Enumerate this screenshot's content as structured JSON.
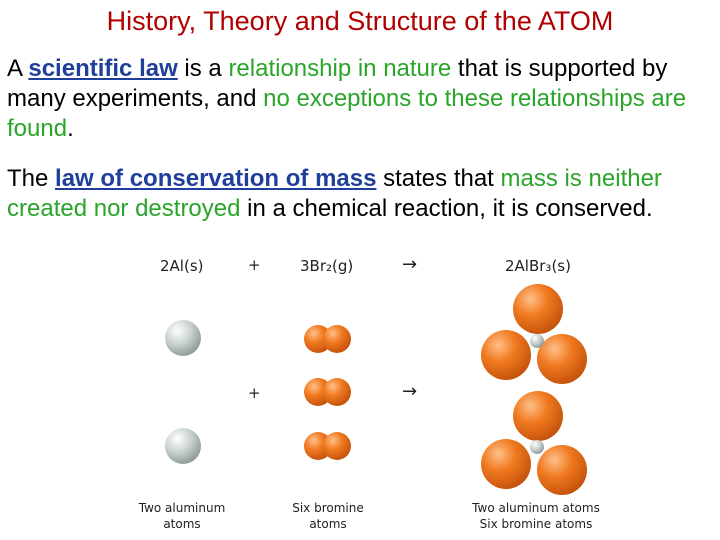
{
  "title": "History, Theory and Structure of the ATOM",
  "para1": {
    "t1": "A ",
    "law": "scientific law",
    "t2": " is a ",
    "g1": "relationship in nature",
    "t3": " that is supported by many experiments, and ",
    "g2": "no exceptions to these relationships are found",
    "t4": "."
  },
  "para2": {
    "t1": "The ",
    "law": "law of conservation of mass",
    "t2": " states that ",
    "g1": "mass is neither created nor destroyed",
    "t3": " in a chemical reaction, it is conserved."
  },
  "equation": {
    "reactant1": "2Al(s)",
    "plus": "+",
    "reactant2": "3Br₂(g)",
    "arrow": "→",
    "product": "2AlBr₃(s)"
  },
  "middle_row": {
    "plus": "+",
    "arrow": "→"
  },
  "captions": {
    "aluminum": [
      "Two aluminum",
      "atoms"
    ],
    "bromine": [
      "Six bromine",
      "atoms"
    ],
    "product": [
      "Two aluminum atoms",
      "Six bromine atoms"
    ]
  },
  "colors": {
    "title": "#b00000",
    "law_link": "#1f3f9a",
    "highlight": "#2aa52a",
    "bromine": "#f07a20",
    "aluminum": "#c9d2d0"
  }
}
